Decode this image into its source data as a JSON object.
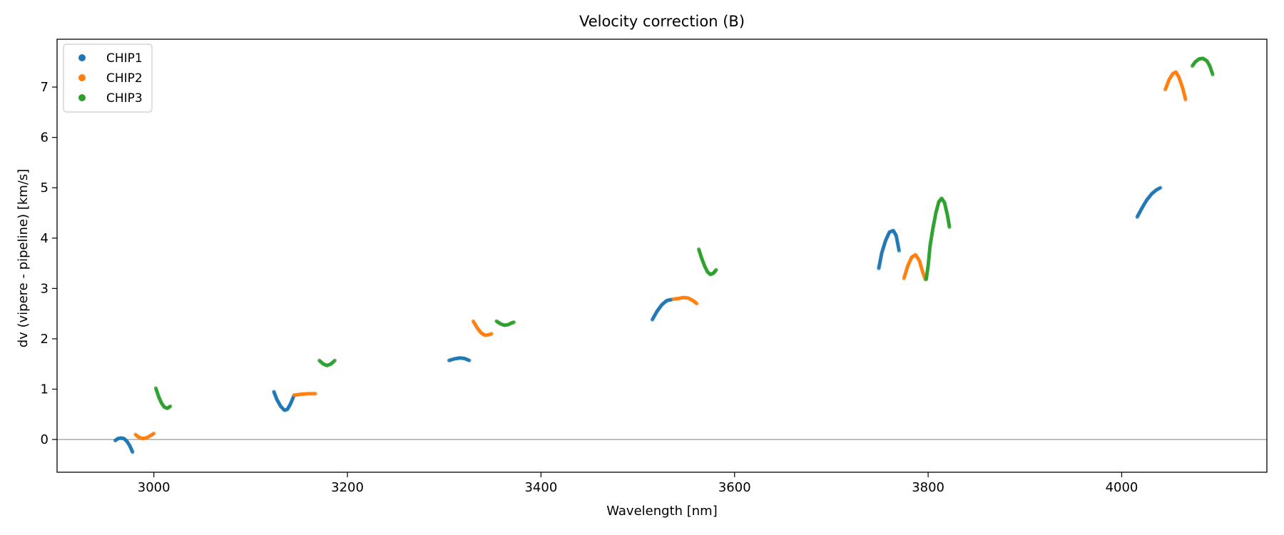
{
  "chart_data": {
    "type": "scatter",
    "title": "Velocity correction (B)",
    "xlabel": "Wavelength [nm]",
    "ylabel": "dv (vipere - pipeline) [km/s]",
    "xlim": [
      2900,
      4150
    ],
    "ylim": [
      -0.65,
      7.95
    ],
    "xticks": [
      3000,
      3200,
      3400,
      3600,
      3800,
      4000
    ],
    "yticks": [
      0,
      1,
      2,
      3,
      4,
      5,
      6,
      7
    ],
    "grid": false,
    "legend_position": "top-left",
    "reference_line": {
      "y": 0,
      "color": "#808080"
    },
    "series": [
      {
        "name": "CHIP1",
        "color": "#1f77b4",
        "segments": [
          [
            [
              2960,
              -0.02
            ],
            [
              2963,
              0.02
            ],
            [
              2966,
              0.03
            ],
            [
              2969,
              0.02
            ],
            [
              2972,
              -0.03
            ],
            [
              2975,
              -0.12
            ],
            [
              2978,
              -0.25
            ]
          ],
          [
            [
              3124,
              0.95
            ],
            [
              3127,
              0.8
            ],
            [
              3131,
              0.66
            ],
            [
              3135,
              0.58
            ],
            [
              3138,
              0.6
            ],
            [
              3141,
              0.7
            ],
            [
              3145,
              0.88
            ]
          ],
          [
            [
              3305,
              1.57
            ],
            [
              3310,
              1.6
            ],
            [
              3316,
              1.62
            ],
            [
              3321,
              1.61
            ],
            [
              3326,
              1.57
            ]
          ],
          [
            [
              3515,
              2.38
            ],
            [
              3520,
              2.55
            ],
            [
              3525,
              2.68
            ],
            [
              3530,
              2.76
            ],
            [
              3535,
              2.78
            ]
          ],
          [
            [
              3749,
              3.4
            ],
            [
              3752,
              3.7
            ],
            [
              3756,
              3.95
            ],
            [
              3760,
              4.12
            ],
            [
              3764,
              4.15
            ],
            [
              3767,
              4.05
            ],
            [
              3770,
              3.75
            ]
          ],
          [
            [
              4016,
              4.42
            ],
            [
              4021,
              4.6
            ],
            [
              4026,
              4.76
            ],
            [
              4031,
              4.88
            ],
            [
              4036,
              4.96
            ],
            [
              4040,
              5.0
            ]
          ]
        ]
      },
      {
        "name": "CHIP2",
        "color": "#ff7f0e",
        "segments": [
          [
            [
              2981,
              0.1
            ],
            [
              2984,
              0.05
            ],
            [
              2988,
              0.02
            ],
            [
              2992,
              0.03
            ],
            [
              2996,
              0.07
            ],
            [
              3000,
              0.12
            ]
          ],
          [
            [
              3145,
              0.88
            ],
            [
              3152,
              0.9
            ],
            [
              3160,
              0.91
            ],
            [
              3167,
              0.91
            ]
          ],
          [
            [
              3330,
              2.35
            ],
            [
              3334,
              2.22
            ],
            [
              3338,
              2.12
            ],
            [
              3342,
              2.07
            ],
            [
              3346,
              2.08
            ],
            [
              3349,
              2.1
            ]
          ],
          [
            [
              3537,
              2.79
            ],
            [
              3542,
              2.8
            ],
            [
              3547,
              2.82
            ],
            [
              3552,
              2.81
            ],
            [
              3557,
              2.76
            ],
            [
              3561,
              2.7
            ]
          ],
          [
            [
              3775,
              3.2
            ],
            [
              3779,
              3.45
            ],
            [
              3783,
              3.62
            ],
            [
              3787,
              3.67
            ],
            [
              3791,
              3.55
            ],
            [
              3794,
              3.35
            ],
            [
              3797,
              3.18
            ]
          ],
          [
            [
              4045,
              6.95
            ],
            [
              4049,
              7.15
            ],
            [
              4053,
              7.27
            ],
            [
              4056,
              7.3
            ],
            [
              4059,
              7.2
            ],
            [
              4063,
              6.98
            ],
            [
              4066,
              6.75
            ]
          ]
        ]
      },
      {
        "name": "CHIP3",
        "color": "#2ca02c",
        "segments": [
          [
            [
              3002,
              1.02
            ],
            [
              3005,
              0.85
            ],
            [
              3008,
              0.72
            ],
            [
              3011,
              0.64
            ],
            [
              3014,
              0.62
            ],
            [
              3017,
              0.66
            ]
          ],
          [
            [
              3171,
              1.57
            ],
            [
              3175,
              1.5
            ],
            [
              3179,
              1.47
            ],
            [
              3183,
              1.5
            ],
            [
              3187,
              1.57
            ]
          ],
          [
            [
              3354,
              2.35
            ],
            [
              3358,
              2.3
            ],
            [
              3362,
              2.27
            ],
            [
              3366,
              2.28
            ],
            [
              3369,
              2.31
            ],
            [
              3372,
              2.33
            ]
          ],
          [
            [
              3563,
              3.78
            ],
            [
              3566,
              3.6
            ],
            [
              3569,
              3.45
            ],
            [
              3572,
              3.33
            ],
            [
              3575,
              3.28
            ],
            [
              3578,
              3.3
            ],
            [
              3581,
              3.37
            ]
          ],
          [
            [
              3798,
              3.18
            ],
            [
              3800,
              3.45
            ],
            [
              3802,
              3.85
            ],
            [
              3805,
              4.2
            ],
            [
              3808,
              4.5
            ],
            [
              3811,
              4.72
            ],
            [
              3814,
              4.79
            ],
            [
              3817,
              4.7
            ],
            [
              3820,
              4.45
            ],
            [
              3822,
              4.22
            ]
          ],
          [
            [
              4073,
              7.42
            ],
            [
              4076,
              7.5
            ],
            [
              4080,
              7.56
            ],
            [
              4084,
              7.57
            ],
            [
              4088,
              7.52
            ],
            [
              4091,
              7.42
            ],
            [
              4094,
              7.25
            ]
          ]
        ]
      }
    ]
  }
}
